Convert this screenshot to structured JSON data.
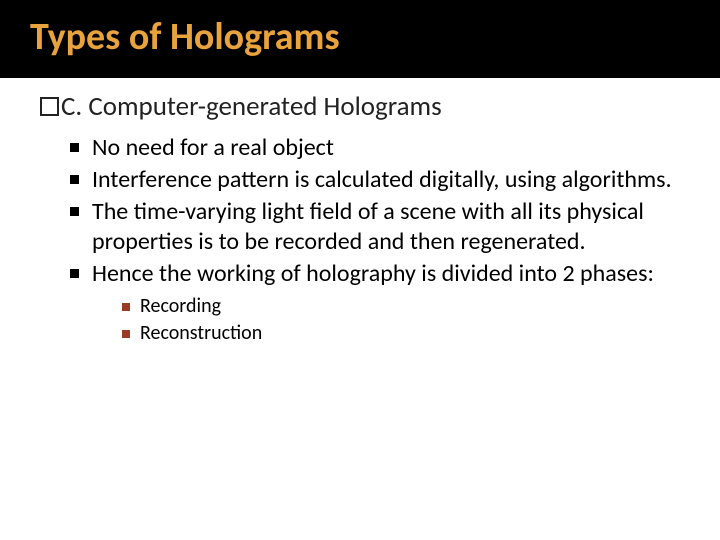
{
  "title": "Types of Holograms",
  "title_color": "#e8a33d",
  "title_bg": "#000000",
  "title_fontsize": 38,
  "subhead_prefix": "C.",
  "subhead_text": "Computer-generated Holograms",
  "subhead_fontsize": 27,
  "bullets": [
    {
      "text": "No need for a real object"
    },
    {
      "text": "Interference pattern is calculated digitally, using algorithms."
    },
    {
      "text": "The time-varying light field of a scene with all its physical properties is to be recorded and then regenerated."
    },
    {
      "text": "Hence the working of holography is divided into 2 phases:"
    }
  ],
  "subbullets": [
    {
      "text": "Recording"
    },
    {
      "text": "Reconstruction"
    }
  ],
  "bullet_fontsize": 24,
  "subbullet_fontsize": 20,
  "bullet_marker_color": "#000000",
  "subbullet_marker_color": "#9a3b26",
  "background_color": "#ffffff"
}
